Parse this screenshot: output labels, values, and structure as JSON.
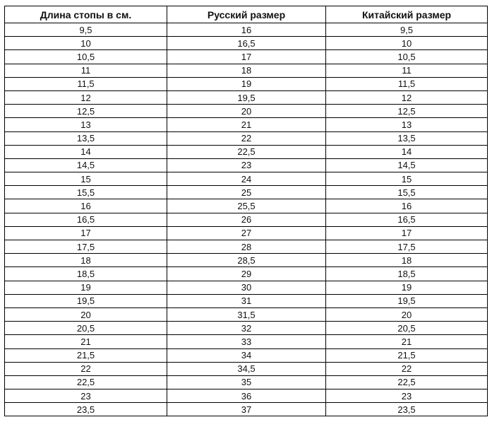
{
  "table": {
    "header": [
      "Длина стопы в см.",
      "Русский размер",
      "Китайский размер"
    ],
    "rows": [
      [
        "9,5",
        "16",
        "9,5"
      ],
      [
        "10",
        "16,5",
        "10"
      ],
      [
        "10,5",
        "17",
        "10,5"
      ],
      [
        "11",
        "18",
        "11"
      ],
      [
        "11,5",
        "19",
        "11,5"
      ],
      [
        "12",
        "19,5",
        "12"
      ],
      [
        "12,5",
        "20",
        "12,5"
      ],
      [
        "13",
        "21",
        "13"
      ],
      [
        "13,5",
        "22",
        "13,5"
      ],
      [
        "14",
        "22,5",
        "14"
      ],
      [
        "14,5",
        "23",
        "14,5"
      ],
      [
        "15",
        "24",
        "15"
      ],
      [
        "15,5",
        "25",
        "15,5"
      ],
      [
        "16",
        "25,5",
        "16"
      ],
      [
        "16,5",
        "26",
        "16,5"
      ],
      [
        "17",
        "27",
        "17"
      ],
      [
        "17,5",
        "28",
        "17,5"
      ],
      [
        "18",
        "28,5",
        "18"
      ],
      [
        "18,5",
        "29",
        "18,5"
      ],
      [
        "19",
        "30",
        "19"
      ],
      [
        "19,5",
        "31",
        "19,5"
      ],
      [
        "20",
        "31,5",
        "20"
      ],
      [
        "20,5",
        "32",
        "20,5"
      ],
      [
        "21",
        "33",
        "21"
      ],
      [
        "21,5",
        "34",
        "21,5"
      ],
      [
        "22",
        "34,5",
        "22"
      ],
      [
        "22,5",
        "35",
        "22,5"
      ],
      [
        "23",
        "36",
        "23"
      ],
      [
        "23,5",
        "37",
        "23,5"
      ]
    ]
  }
}
